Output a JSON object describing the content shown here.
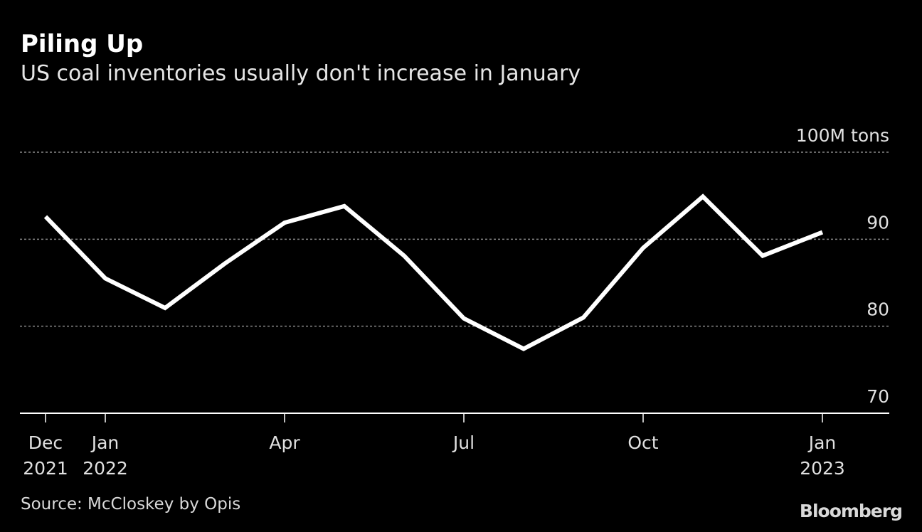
{
  "title": "Piling Up",
  "subtitle": "US coal inventories usually don't increase in January",
  "source": "Source: McCloskey by Opis",
  "logo": "Bloomberg",
  "chart_data": {
    "type": "line",
    "title": "Piling Up",
    "subtitle": "US coal inventories usually don't increase in January",
    "ylabel": "100M tons",
    "unit_label": "100M tons",
    "ylim": [
      70,
      100
    ],
    "yticks": [
      70,
      80,
      90,
      100
    ],
    "ytick_labels": [
      "70",
      "80",
      "90",
      "100M tons"
    ],
    "grid": true,
    "x": [
      "2021-12",
      "2022-01",
      "2022-02",
      "2022-03",
      "2022-04",
      "2022-05",
      "2022-06",
      "2022-07",
      "2022-08",
      "2022-09",
      "2022-10",
      "2022-11",
      "2022-12",
      "2023-01"
    ],
    "xticks": [
      {
        "index": 0,
        "line1": "Dec",
        "line2": "2021"
      },
      {
        "index": 1,
        "line1": "Jan",
        "line2": "2022"
      },
      {
        "index": 4,
        "line1": "Apr",
        "line2": ""
      },
      {
        "index": 7,
        "line1": "Jul",
        "line2": ""
      },
      {
        "index": 10,
        "line1": "Oct",
        "line2": ""
      },
      {
        "index": 13,
        "line1": "Jan",
        "line2": "2023"
      }
    ],
    "series": [
      {
        "name": "US coal inventories",
        "color": "#ffffff",
        "values": [
          92.6,
          85.5,
          82.1,
          87.2,
          91.9,
          93.8,
          88.1,
          80.9,
          77.4,
          81.0,
          89.0,
          94.9,
          88.1,
          90.8
        ]
      }
    ]
  }
}
